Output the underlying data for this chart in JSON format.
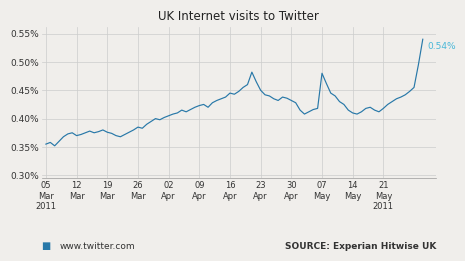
{
  "title": "UK Internet visits to Twitter",
  "line_color": "#2878a8",
  "annotation_color": "#4ab8d8",
  "annotation_text": "0.54%",
  "bg_color": "#f0eeeb",
  "plot_bg_color": "#f0eeeb",
  "grid_color": "#cccccc",
  "ylim": [
    0.295,
    0.562
  ],
  "yticks": [
    0.3,
    0.35,
    0.4,
    0.45,
    0.5,
    0.55
  ],
  "ytick_labels": [
    "0.30%",
    "0.35%",
    "0.40%",
    "0.45%",
    "0.50%",
    "0.55%"
  ],
  "legend_label": "www.twitter.com",
  "legend_color": "#2878a8",
  "source_text": "SOURCE: Experian Hitwise UK",
  "values": [
    0.355,
    0.358,
    0.352,
    0.36,
    0.368,
    0.373,
    0.375,
    0.37,
    0.372,
    0.375,
    0.378,
    0.375,
    0.377,
    0.38,
    0.376,
    0.374,
    0.37,
    0.368,
    0.372,
    0.376,
    0.38,
    0.385,
    0.383,
    0.39,
    0.395,
    0.4,
    0.398,
    0.402,
    0.405,
    0.408,
    0.41,
    0.415,
    0.412,
    0.416,
    0.42,
    0.423,
    0.425,
    0.42,
    0.428,
    0.432,
    0.435,
    0.438,
    0.445,
    0.443,
    0.448,
    0.455,
    0.46,
    0.482,
    0.465,
    0.45,
    0.442,
    0.44,
    0.435,
    0.432,
    0.438,
    0.436,
    0.432,
    0.428,
    0.415,
    0.408,
    0.412,
    0.416,
    0.418,
    0.48,
    0.462,
    0.445,
    0.44,
    0.43,
    0.425,
    0.415,
    0.41,
    0.408,
    0.412,
    0.418,
    0.42,
    0.415,
    0.412,
    0.418,
    0.425,
    0.43,
    0.435,
    0.438,
    0.442,
    0.448,
    0.455,
    0.495,
    0.54
  ]
}
